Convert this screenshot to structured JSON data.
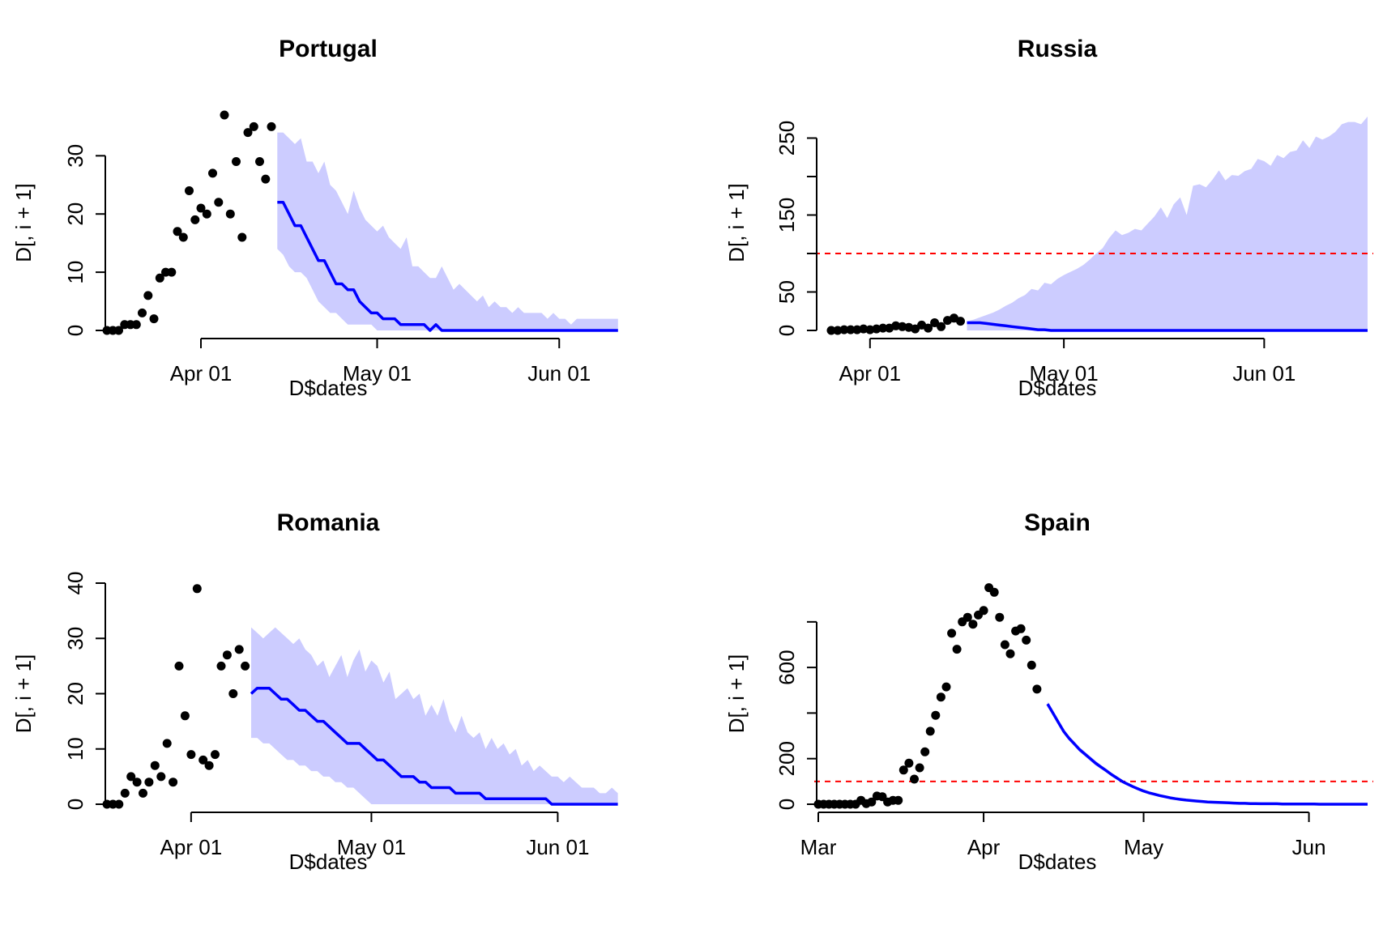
{
  "figure": {
    "xlabel": "D$dates",
    "ylabel": "D[, i + 1]"
  },
  "colors": {
    "points": "#000000",
    "forecast_line": "#0000ff",
    "band": "#ccccff",
    "threshold": "#ff0000"
  },
  "chart_data": [
    {
      "type": "scatter",
      "title": "Portugal",
      "xlabel": "D$dates",
      "ylabel": "D[, i + 1]",
      "xlim": [
        "2020-03-16",
        "2020-06-12"
      ],
      "ylim": [
        0,
        37
      ],
      "x_ticks": [
        {
          "date": "2020-04-01",
          "label": "Apr 01"
        },
        {
          "date": "2020-05-01",
          "label": "May 01"
        },
        {
          "date": "2020-06-01",
          "label": "Jun 01"
        }
      ],
      "y_ticks": [
        0,
        10,
        20,
        30
      ],
      "threshold": null,
      "observed": {
        "start": "2020-03-16",
        "values": [
          0,
          0,
          0,
          1,
          1,
          1,
          3,
          6,
          2,
          9,
          10,
          10,
          17,
          16,
          24,
          19,
          21,
          20,
          27,
          22,
          37,
          20,
          29,
          16,
          34,
          35,
          29,
          26,
          35
        ]
      },
      "forecast": {
        "start": "2020-04-14",
        "median": [
          22,
          22,
          20,
          18,
          18,
          16,
          14,
          12,
          12,
          10,
          8,
          8,
          7,
          7,
          5,
          4,
          3,
          3,
          2,
          2,
          2,
          1,
          1,
          1,
          1,
          1,
          0,
          1,
          0,
          0,
          0,
          0,
          0,
          0,
          0,
          0,
          0,
          0,
          0,
          0,
          0,
          0,
          0,
          0,
          0,
          0,
          0,
          0,
          0,
          0,
          0,
          0,
          0,
          0,
          0,
          0,
          0,
          0,
          0
        ],
        "lower": [
          14,
          13,
          11,
          10,
          10,
          9,
          7,
          5,
          4,
          3,
          3,
          2,
          1,
          1,
          1,
          1,
          1,
          0,
          0,
          0,
          0,
          0,
          0,
          0,
          0,
          0,
          0,
          0,
          0,
          0,
          0,
          0,
          0,
          0,
          0,
          0,
          0,
          0,
          0,
          0,
          0,
          0,
          0,
          0,
          0,
          0,
          0,
          0,
          0,
          0,
          0,
          0,
          0,
          0,
          0,
          0,
          0,
          0,
          0
        ],
        "upper": [
          34,
          34,
          33,
          32,
          33,
          29,
          29,
          27,
          29,
          25,
          24,
          22,
          20,
          24,
          21,
          19,
          18,
          17,
          18,
          16,
          15,
          14,
          16,
          11,
          11,
          10,
          9,
          9,
          11,
          9,
          7,
          8,
          7,
          6,
          5,
          6,
          4,
          5,
          4,
          4,
          3,
          4,
          3,
          3,
          3,
          3,
          2,
          3,
          2,
          2,
          1,
          2,
          2,
          2,
          2,
          2,
          2,
          2,
          2
        ]
      }
    },
    {
      "type": "scatter",
      "title": "Russia",
      "xlabel": "D$dates",
      "ylabel": "D[, i + 1]",
      "xlim": [
        "2020-03-24",
        "2020-06-17"
      ],
      "ylim": [
        0,
        280
      ],
      "x_ticks": [
        {
          "date": "2020-04-01",
          "label": "Apr 01"
        },
        {
          "date": "2020-05-01",
          "label": "May 01"
        },
        {
          "date": "2020-06-01",
          "label": "Jun 01"
        }
      ],
      "y_ticks": [
        0,
        50,
        150,
        250
      ],
      "y_minor_ticks": [
        100,
        200
      ],
      "threshold": 100,
      "observed": {
        "start": "2020-03-26",
        "values": [
          0,
          0,
          1,
          1,
          1,
          2,
          1,
          2,
          3,
          3,
          6,
          5,
          4,
          2,
          7,
          3,
          10,
          5,
          13,
          16,
          12
        ]
      },
      "forecast": {
        "start": "2020-04-16",
        "median": [
          10,
          10,
          10,
          9,
          8,
          7,
          6,
          5,
          4,
          3,
          2,
          1,
          1,
          0,
          0,
          0,
          0,
          0,
          0,
          0,
          0,
          0,
          0,
          0,
          0,
          0,
          0,
          0,
          0,
          0,
          0,
          0,
          0,
          0,
          0,
          0,
          0,
          0,
          0,
          0,
          0,
          0,
          0,
          0,
          0,
          0,
          0,
          0,
          0,
          0,
          0,
          0,
          0,
          0,
          0,
          0,
          0,
          0,
          0,
          0,
          0,
          0,
          0
        ],
        "lower": [
          0,
          0,
          0,
          0,
          0,
          0,
          0,
          0,
          0,
          0,
          0,
          0,
          0,
          0,
          0,
          0,
          0,
          0,
          0,
          0,
          0,
          0,
          0,
          0,
          0,
          0,
          0,
          0,
          0,
          0,
          0,
          0,
          0,
          0,
          0,
          0,
          0,
          0,
          0,
          0,
          0,
          0,
          0,
          0,
          0,
          0,
          0,
          0,
          0,
          0,
          0,
          0,
          0,
          0,
          0,
          0,
          0,
          0,
          0,
          0,
          0,
          0,
          0
        ],
        "upper": [
          12,
          14,
          17,
          20,
          23,
          27,
          32,
          36,
          42,
          46,
          54,
          52,
          62,
          60,
          67,
          72,
          76,
          80,
          85,
          92,
          100,
          107,
          120,
          130,
          124,
          127,
          132,
          130,
          139,
          148,
          160,
          146,
          164,
          173,
          150,
          188,
          190,
          186,
          196,
          208,
          195,
          202,
          201,
          207,
          210,
          223,
          220,
          214,
          228,
          224,
          232,
          234,
          247,
          237,
          252,
          248,
          252,
          258,
          268,
          271,
          271,
          268,
          278
        ]
      }
    },
    {
      "type": "scatter",
      "title": "Romania",
      "xlabel": "D$dates",
      "ylabel": "D[, i + 1]",
      "xlim": [
        "2020-03-18",
        "2020-06-12"
      ],
      "ylim": [
        0,
        40
      ],
      "x_ticks": [
        {
          "date": "2020-04-01",
          "label": "Apr 01"
        },
        {
          "date": "2020-05-01",
          "label": "May 01"
        },
        {
          "date": "2020-06-01",
          "label": "Jun 01"
        }
      ],
      "y_ticks": [
        0,
        10,
        20,
        30,
        40
      ],
      "threshold": null,
      "observed": {
        "start": "2020-03-18",
        "values": [
          0,
          0,
          0,
          2,
          5,
          4,
          2,
          4,
          7,
          5,
          11,
          4,
          25,
          16,
          9,
          39,
          8,
          7,
          9,
          25,
          27,
          20,
          28,
          25
        ]
      },
      "forecast": {
        "start": "2020-04-11",
        "median": [
          20,
          21,
          21,
          21,
          20,
          19,
          19,
          18,
          17,
          17,
          16,
          15,
          15,
          14,
          13,
          12,
          11,
          11,
          11,
          10,
          9,
          8,
          8,
          7,
          6,
          5,
          5,
          5,
          4,
          4,
          3,
          3,
          3,
          3,
          2,
          2,
          2,
          2,
          2,
          1,
          1,
          1,
          1,
          1,
          1,
          1,
          1,
          1,
          1,
          1,
          0,
          0,
          0,
          0,
          0,
          0,
          0,
          0,
          0,
          0,
          0,
          0
        ],
        "lower": [
          12,
          12,
          11,
          11,
          10,
          9,
          8,
          8,
          7,
          7,
          6,
          6,
          5,
          5,
          4,
          4,
          3,
          3,
          2,
          1,
          0,
          0,
          0,
          0,
          0,
          0,
          0,
          0,
          0,
          0,
          0,
          0,
          0,
          0,
          0,
          0,
          0,
          0,
          0,
          0,
          0,
          0,
          0,
          0,
          0,
          0,
          0,
          0,
          0,
          0,
          0,
          0,
          0,
          0,
          0,
          0,
          0,
          0,
          0,
          0,
          0,
          0
        ],
        "upper": [
          32,
          31,
          30,
          31,
          32,
          31,
          30,
          29,
          30,
          28,
          27,
          25,
          26,
          23,
          25,
          27,
          23,
          26,
          28,
          24,
          26,
          25,
          22,
          24,
          19,
          20,
          21,
          19,
          20,
          16,
          18,
          16,
          19,
          15,
          13,
          16,
          13,
          12,
          13,
          10,
          12,
          10,
          11,
          9,
          10,
          7,
          8,
          6,
          7,
          6,
          5,
          5,
          4,
          5,
          4,
          3,
          3,
          3,
          2,
          2,
          3,
          2
        ]
      }
    },
    {
      "type": "scatter",
      "title": "Spain",
      "xlabel": "D$dates",
      "ylabel": "D[, i + 1]",
      "xlim": [
        "2020-03-01",
        "2020-06-12"
      ],
      "ylim": [
        0,
        970
      ],
      "x_ticks": [
        {
          "date": "2020-03-01",
          "label": "Mar"
        },
        {
          "date": "2020-04-01",
          "label": "Apr"
        },
        {
          "date": "2020-05-01",
          "label": "May"
        },
        {
          "date": "2020-06-01",
          "label": "Jun"
        }
      ],
      "y_ticks": [
        0,
        200,
        600
      ],
      "y_minor_ticks": [
        400,
        800
      ],
      "threshold": 100,
      "observed": {
        "start": "2020-03-01",
        "values": [
          0,
          0,
          0,
          0,
          0,
          0,
          0,
          0,
          17,
          3,
          10,
          36,
          33,
          10,
          17,
          17,
          150,
          180,
          110,
          160,
          230,
          320,
          390,
          470,
          515,
          750,
          680,
          800,
          820,
          790,
          830,
          850,
          950,
          930,
          820,
          700,
          660,
          760,
          770,
          720,
          610,
          505
        ]
      },
      "forecast": {
        "start": "2020-04-13",
        "median": [
          440,
          400,
          360,
          320,
          290,
          265,
          240,
          220,
          200,
          180,
          163,
          147,
          130,
          115,
          100,
          88,
          77,
          67,
          58,
          50,
          44,
          38,
          33,
          28,
          24,
          21,
          18,
          16,
          14,
          12,
          10,
          9,
          8,
          7,
          6,
          5,
          4,
          4,
          3,
          3,
          2,
          2,
          2,
          2,
          1,
          1,
          1,
          1,
          1,
          1,
          1,
          0,
          0,
          0,
          0,
          0,
          0,
          0,
          0,
          0,
          0
        ],
        "lower": [
          430,
          390,
          350,
          310,
          280,
          255,
          230,
          210,
          190,
          170,
          155,
          139,
          123,
          108,
          94,
          82,
          72,
          62,
          54,
          46,
          40,
          34,
          30,
          25,
          21,
          18,
          16,
          14,
          12,
          10,
          9,
          8,
          7,
          6,
          5,
          4,
          3,
          3,
          2,
          2,
          2,
          1,
          1,
          1,
          1,
          1,
          1,
          0,
          0,
          0,
          0,
          0,
          0,
          0,
          0,
          0,
          0,
          0,
          0,
          0,
          0
        ],
        "upper": [
          450,
          410,
          370,
          330,
          300,
          275,
          250,
          230,
          210,
          190,
          172,
          155,
          138,
          122,
          106,
          94,
          82,
          72,
          62,
          54,
          48,
          42,
          36,
          31,
          27,
          23,
          20,
          18,
          16,
          14,
          12,
          10,
          9,
          8,
          7,
          6,
          5,
          5,
          4,
          4,
          3,
          3,
          3,
          2,
          2,
          2,
          2,
          1,
          1,
          1,
          1,
          1,
          1,
          1,
          1,
          1,
          1,
          1,
          1,
          1,
          1
        ]
      }
    }
  ]
}
